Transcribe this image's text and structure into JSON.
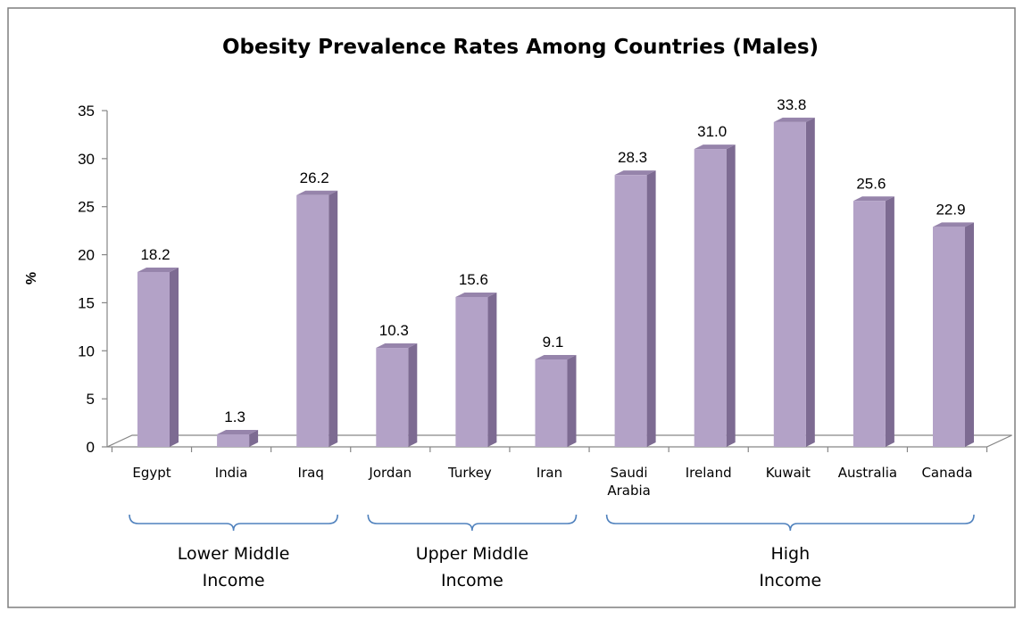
{
  "chart_data": {
    "type": "bar",
    "title": "Obesity Prevalence Rates Among Countries (Males)",
    "xlabel": "",
    "ylabel": "%",
    "ylim": [
      0,
      35
    ],
    "yticks": [
      0,
      5,
      10,
      15,
      20,
      25,
      30,
      35
    ],
    "grid": false,
    "legend": "none",
    "three_d": true,
    "categories": [
      [
        "Egypt"
      ],
      [
        "India"
      ],
      [
        "Iraq"
      ],
      [
        "Jordan"
      ],
      [
        "Turkey"
      ],
      [
        "Iran"
      ],
      [
        "Saudi",
        "Arabia"
      ],
      [
        "Ireland"
      ],
      [
        "Kuwait"
      ],
      [
        "Australia"
      ],
      [
        "Canada"
      ]
    ],
    "values": [
      18.2,
      1.3,
      26.2,
      10.3,
      15.6,
      9.1,
      28.3,
      31.0,
      33.8,
      25.6,
      22.9
    ],
    "value_labels": [
      "18.2",
      "1.3",
      "26.2",
      "10.3",
      "15.6",
      "9.1",
      "28.3",
      "31.0",
      "33.8",
      "25.6",
      "22.9"
    ],
    "groups": [
      {
        "label": [
          "Lower Middle",
          "Income"
        ],
        "first": 0,
        "last": 2
      },
      {
        "label": [
          "Upper Middle",
          "Income"
        ],
        "first": 3,
        "last": 5
      },
      {
        "label": [
          "High",
          "Income"
        ],
        "first": 6,
        "last": 10
      }
    ],
    "colors": {
      "bar_front": "#b3a2c7",
      "bar_side": "#7d6b92",
      "bar_top": "#9684ab",
      "axis": "#868686",
      "bracket": "#4f81bd",
      "frame": "#7f7f7f"
    }
  }
}
